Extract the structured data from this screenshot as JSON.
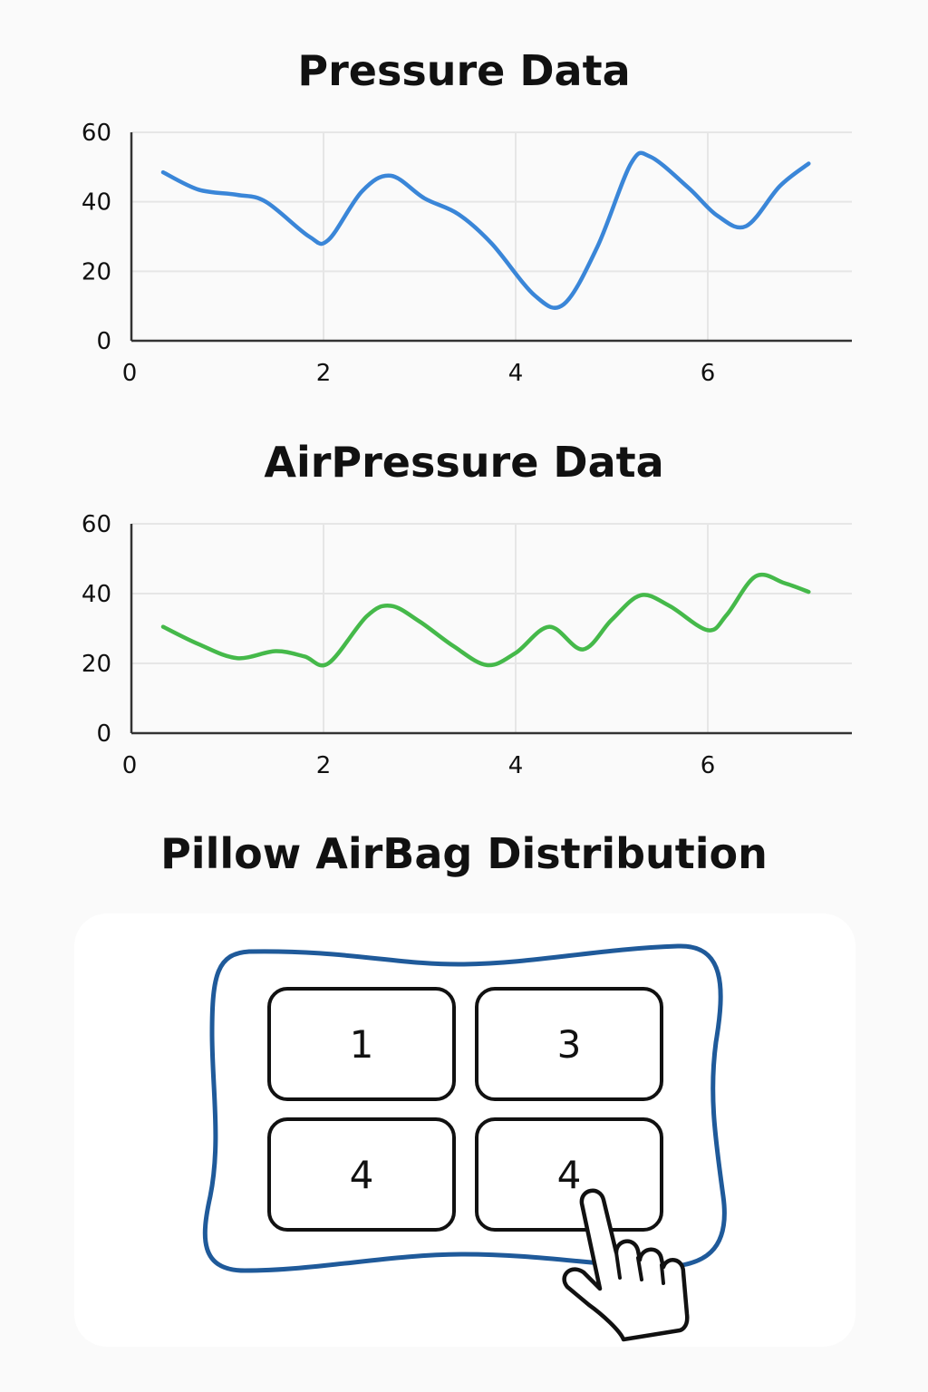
{
  "sections": {
    "pressure_title": "Pressure Data",
    "airpressure_title": "AirPressure Data",
    "pillow_title": "Pillow AirBag Distribution"
  },
  "chart_data": [
    {
      "type": "line",
      "title": "Pressure Data",
      "xlabel": "",
      "ylabel": "",
      "xlim": [
        0,
        7.5
      ],
      "ylim": [
        0,
        60
      ],
      "xticks": [
        0,
        2,
        4,
        6
      ],
      "yticks": [
        0,
        20,
        40,
        60
      ],
      "grid": true,
      "legend": "none",
      "color": "#3a86d8",
      "x": [
        0.33,
        0.7,
        1.1,
        1.4,
        1.85,
        2.05,
        2.4,
        2.7,
        3.05,
        3.4,
        3.75,
        4.2,
        4.5,
        4.85,
        5.2,
        5.4,
        5.8,
        6.1,
        6.4,
        6.75,
        7.05
      ],
      "y": [
        48.5,
        43.5,
        42,
        40,
        30,
        29,
        43,
        47.5,
        41,
        36.5,
        28,
        13,
        10.5,
        27,
        51,
        53,
        44,
        36,
        33,
        44.5,
        51
      ]
    },
    {
      "type": "line",
      "title": "AirPressure Data",
      "xlabel": "",
      "ylabel": "",
      "xlim": [
        0,
        7.5
      ],
      "ylim": [
        0,
        60
      ],
      "xticks": [
        0,
        2,
        4,
        6
      ],
      "yticks": [
        0,
        20,
        40,
        60
      ],
      "grid": true,
      "legend": "none",
      "color": "#45b94a",
      "x": [
        0.33,
        0.7,
        1.1,
        1.5,
        1.8,
        2.05,
        2.45,
        2.7,
        3.0,
        3.35,
        3.7,
        4.0,
        4.35,
        4.7,
        5.0,
        5.3,
        5.6,
        6.0,
        6.2,
        6.5,
        6.8,
        7.05
      ],
      "y": [
        30.5,
        25.5,
        21.5,
        23.5,
        22,
        20,
        33.5,
        36.5,
        32,
        25,
        19.5,
        23,
        30.5,
        24,
        32.5,
        39.5,
        36.5,
        29.5,
        34,
        45,
        43,
        40.5
      ]
    }
  ],
  "pillow": {
    "airbags": [
      {
        "label": "1"
      },
      {
        "label": "3"
      },
      {
        "label": "4"
      },
      {
        "label": "4"
      }
    ],
    "outline_color": "#1f5a9a",
    "cursor_icon": "pointing-hand-icon"
  }
}
